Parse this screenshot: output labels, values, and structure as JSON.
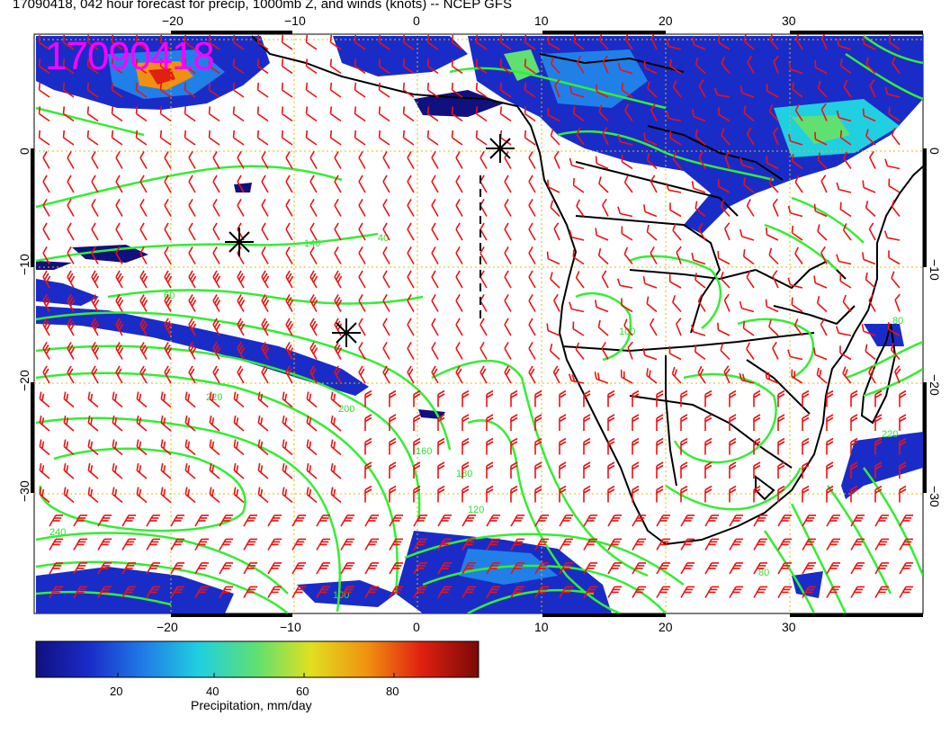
{
  "header": {
    "title": "17090418, 042 hour forecast for precip, 1000mb Z, and winds (knots) -- NCEP GFS",
    "stamp": "17090418"
  },
  "axes": {
    "x_ticks": [
      "−20",
      "−10",
      "0",
      "10",
      "20",
      "30"
    ],
    "y_ticks": [
      "0",
      "−10",
      "−20",
      "−30"
    ]
  },
  "contours": {
    "labels": [
      "140",
      "40",
      "60",
      "220",
      "200",
      "160",
      "180",
      "100",
      "80",
      "120",
      "240"
    ]
  },
  "colorbar": {
    "label": "Precipitation, mm/day",
    "ticks": [
      "20",
      "40",
      "60",
      "80"
    ]
  },
  "colors": {
    "precip_low": "#10107f",
    "contour": "#33ee33",
    "wind_barb": "#ee1111",
    "grid": "#e8b800",
    "land_outline": "#000000",
    "stamp": "#ff00ff"
  },
  "markers": {
    "storm_symbol": "asterisk-icon"
  }
}
